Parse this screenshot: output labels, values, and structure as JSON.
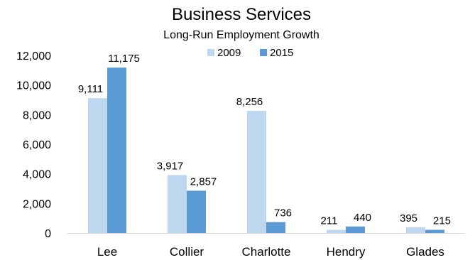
{
  "chart_data": {
    "type": "bar",
    "title": "Business Services",
    "subtitle": "Long-Run Employment Growth",
    "xlabel": "",
    "ylabel": "",
    "categories": [
      "Lee",
      "Collier",
      "Charlotte",
      "Hendry",
      "Glades"
    ],
    "series": [
      {
        "name": "2009",
        "values": [
          9111,
          3917,
          8256,
          211,
          395
        ],
        "labels": [
          "9,111",
          "3,917",
          "8,256",
          "211",
          "395"
        ],
        "color": "#bdd7ee"
      },
      {
        "name": "2015",
        "values": [
          11175,
          2857,
          736,
          440,
          215
        ],
        "labels": [
          "11,175",
          "2,857",
          "736",
          "440",
          "215"
        ],
        "color": "#5b9bd5"
      }
    ],
    "ylim": [
      0,
      12000
    ],
    "yticks": [
      0,
      2000,
      4000,
      6000,
      8000,
      10000,
      12000
    ],
    "ytick_labels": [
      "0",
      "2,000",
      "4,000",
      "6,000",
      "8,000",
      "10,000",
      "12,000"
    ],
    "grid": false,
    "legend_position": "top-center"
  }
}
